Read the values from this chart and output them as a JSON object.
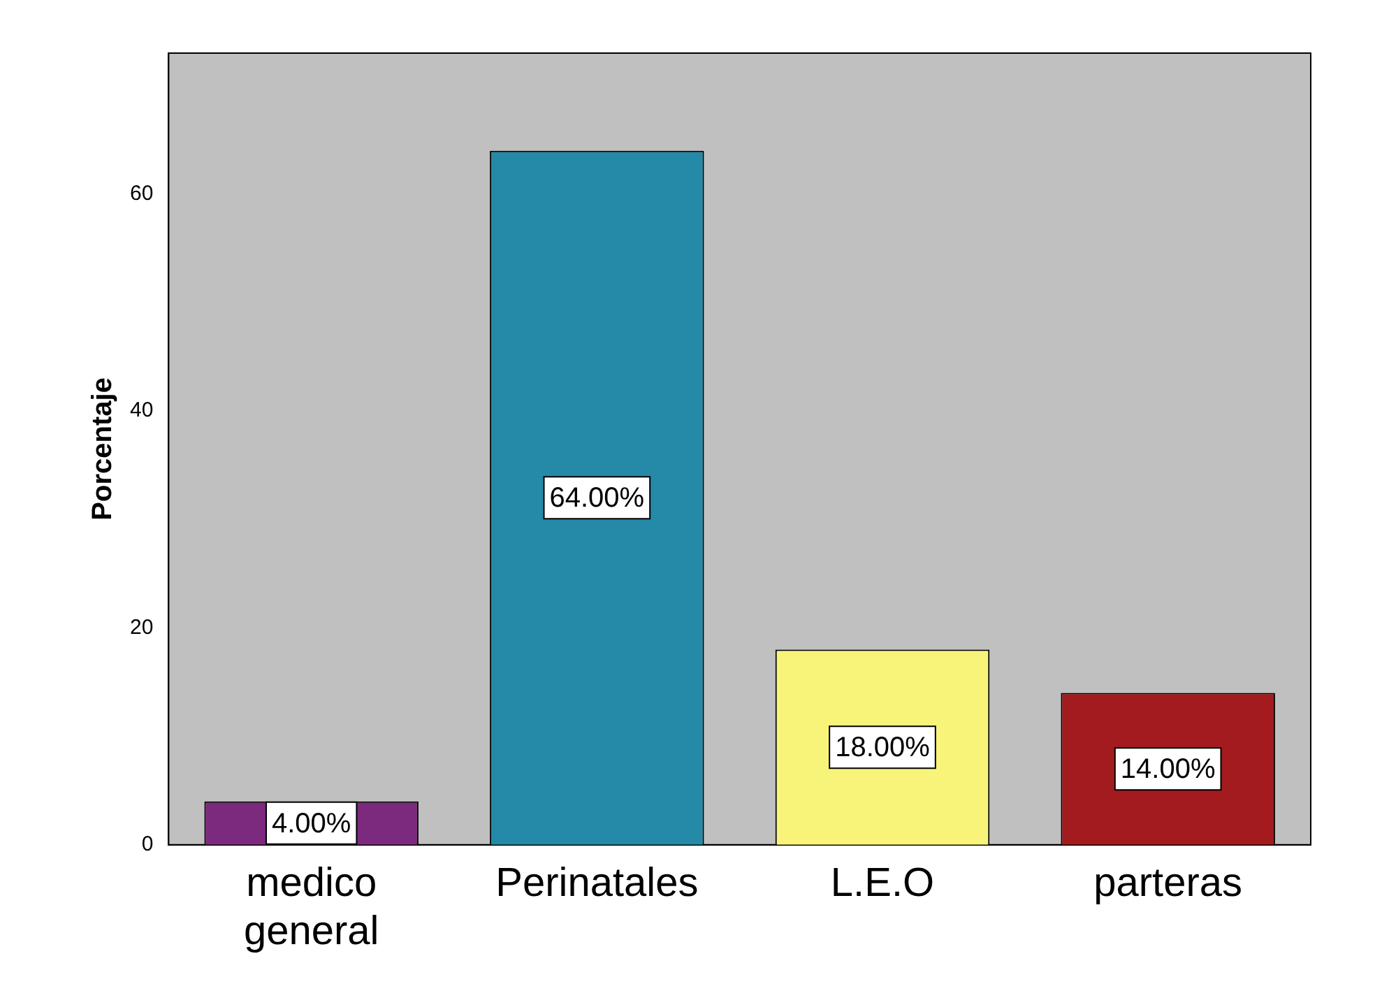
{
  "chart_data": {
    "type": "bar",
    "ylabel": "Porcentaje",
    "categories": [
      "medico general",
      "Perinatales",
      "L.E.O",
      "parteras"
    ],
    "values": [
      4,
      64,
      18,
      14
    ],
    "colors": [
      "#7b2a7e",
      "#2589a8",
      "#f8f47a",
      "#a31b1e"
    ],
    "value_labels": [
      "4.00%",
      "64.00%",
      "18.00%",
      "14.00%"
    ],
    "ylim": [
      0,
      73
    ],
    "yticks": [
      0,
      20,
      40,
      60
    ],
    "grid": false,
    "legend": false
  }
}
